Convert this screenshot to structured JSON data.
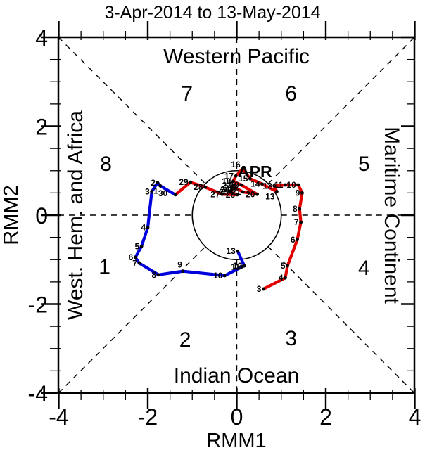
{
  "title": "3-Apr-2014 to 13-May-2014",
  "axes": {
    "xlabel": "RMM1",
    "ylabel": "RMM2",
    "xticks": [
      -4,
      -2,
      0,
      2,
      4
    ],
    "yticks": [
      -4,
      -2,
      0,
      2,
      4
    ],
    "xlim": [
      -4,
      4
    ],
    "ylim": [
      -4,
      4
    ],
    "minor_step": 0.5
  },
  "regions": {
    "top": "Western Pacific",
    "bottom": "Indian Ocean",
    "left": "West. Hem. and Africa",
    "right": "Maritime Continent"
  },
  "phases": [
    {
      "n": "1",
      "rmm1": -2.97,
      "rmm2": -1.15
    },
    {
      "n": "2",
      "rmm1": -1.16,
      "rmm2": -2.78
    },
    {
      "n": "3",
      "rmm1": 1.22,
      "rmm2": -2.75
    },
    {
      "n": "4",
      "rmm1": 2.86,
      "rmm2": -1.17
    },
    {
      "n": "5",
      "rmm1": 2.86,
      "rmm2": 1.17
    },
    {
      "n": "6",
      "rmm1": 1.22,
      "rmm2": 2.75
    },
    {
      "n": "7",
      "rmm1": -1.12,
      "rmm2": 2.75
    },
    {
      "n": "8",
      "rmm1": -2.94,
      "rmm2": 1.17
    }
  ],
  "month_label": {
    "text": "APR",
    "color": "#e10000"
  },
  "colors": {
    "april": "#e10000",
    "may": "#0000dd",
    "marker": "#000000",
    "axis": "#000000"
  },
  "chart_data": {
    "type": "line",
    "subtype": "mjo-phase-space-trajectory",
    "title": "3-Apr-2014 to 13-May-2014",
    "xlabel": "RMM1",
    "ylabel": "RMM2",
    "xlim": [
      -4,
      4
    ],
    "ylim": [
      -4,
      4
    ],
    "unit_circle_radius": 1,
    "grid": "dashed-octant-guides",
    "series": [
      {
        "name": "April 2014",
        "color": "#e10000",
        "connect_from_previous": false,
        "points": [
          {
            "day": 3,
            "rmm1": 0.6,
            "rmm2": -1.66
          },
          {
            "day": 4,
            "rmm1": 1.09,
            "rmm2": -1.41
          },
          {
            "day": 5,
            "rmm1": 1.14,
            "rmm2": -1.14
          },
          {
            "day": 6,
            "rmm1": 1.36,
            "rmm2": -0.55
          },
          {
            "day": 7,
            "rmm1": 1.44,
            "rmm2": -0.16
          },
          {
            "day": 8,
            "rmm1": 1.41,
            "rmm2": 0.14
          },
          {
            "day": 9,
            "rmm1": 1.47,
            "rmm2": 0.5
          },
          {
            "day": 10,
            "rmm1": 1.38,
            "rmm2": 0.68
          },
          {
            "day": 11,
            "rmm1": 1.09,
            "rmm2": 0.68
          },
          {
            "day": 12,
            "rmm1": 0.84,
            "rmm2": 0.66
          },
          {
            "day": 13,
            "rmm1": 0.9,
            "rmm2": 0.53,
            "lox": -3,
            "loy": 11
          },
          {
            "day": 14,
            "rmm1": 0.57,
            "rmm2": 0.7
          },
          {
            "day": 15,
            "rmm1": 0.3,
            "rmm2": 0.82
          },
          {
            "day": 16,
            "rmm1": 0.13,
            "rmm2": 1.04,
            "loy": -2
          },
          {
            "day": 17,
            "rmm1": -0.02,
            "rmm2": 0.88
          },
          {
            "day": 18,
            "rmm1": -0.08,
            "rmm2": 0.76
          },
          {
            "day": 19,
            "rmm1": 0.1,
            "rmm2": 0.68
          },
          {
            "day": 20,
            "rmm1": 0.46,
            "rmm2": 0.47
          },
          {
            "day": 21,
            "rmm1": 0.14,
            "rmm2": 0.52
          },
          {
            "day": 22,
            "rmm1": -0.02,
            "rmm2": 0.61
          },
          {
            "day": 23,
            "rmm1": -0.07,
            "rmm2": 0.67
          },
          {
            "day": 24,
            "rmm1": -0.11,
            "rmm2": 0.58
          },
          {
            "day": 25,
            "rmm1": -0.14,
            "rmm2": 0.52
          },
          {
            "day": 26,
            "rmm1": 0.01,
            "rmm2": 0.46
          },
          {
            "day": 27,
            "rmm1": -0.33,
            "rmm2": 0.47
          },
          {
            "day": 28,
            "rmm1": -0.71,
            "rmm2": 0.63
          },
          {
            "day": 29,
            "rmm1": -1.04,
            "rmm2": 0.74
          },
          {
            "day": 30,
            "rmm1": -1.38,
            "rmm2": 0.46,
            "lox": -11,
            "loy": 2
          }
        ]
      },
      {
        "name": "May 2014",
        "color": "#0000dd",
        "connect_from_previous": true,
        "points": [
          {
            "day": 1,
            "rmm1": -1.72,
            "rmm2": 0.66,
            "lox": -3,
            "loy": 11
          },
          {
            "day": 2,
            "rmm1": -1.78,
            "rmm2": 0.73
          },
          {
            "day": 3,
            "rmm1": -1.91,
            "rmm2": 0.53
          },
          {
            "day": 4,
            "rmm1": -2.0,
            "rmm2": -0.28
          },
          {
            "day": 5,
            "rmm1": -2.14,
            "rmm2": -0.7
          },
          {
            "day": 6,
            "rmm1": -2.28,
            "rmm2": -0.95
          },
          {
            "day": 7,
            "rmm1": -2.19,
            "rmm2": -1.08
          },
          {
            "day": 8,
            "rmm1": -1.76,
            "rmm2": -1.34
          },
          {
            "day": 9,
            "rmm1": -1.21,
            "rmm2": -1.26,
            "lox": -1,
            "loy": -5
          },
          {
            "day": 10,
            "rmm1": -0.27,
            "rmm2": -1.36
          },
          {
            "day": 11,
            "rmm1": 0.12,
            "rmm2": -1.16
          },
          {
            "day": 12,
            "rmm1": 0.17,
            "rmm2": -1.14
          },
          {
            "day": 13,
            "rmm1": 0.02,
            "rmm2": -0.81
          }
        ]
      }
    ]
  }
}
